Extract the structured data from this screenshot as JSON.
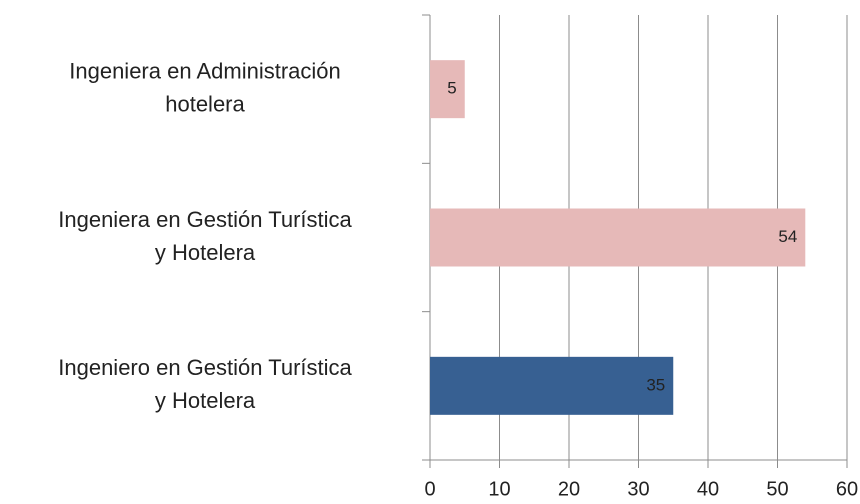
{
  "chart_data": {
    "type": "bar",
    "orientation": "horizontal",
    "categories": [
      [
        "Ingeniera en Administración",
        "hotelera"
      ],
      [
        "Ingeniera en Gestión Turística",
        "y Hotelera"
      ],
      [
        "Ingeniero en Gestión Turística",
        "y Hotelera"
      ]
    ],
    "values": [
      5,
      54,
      35
    ],
    "colors": [
      "#e6b9b8",
      "#e6b9b8",
      "#376092"
    ],
    "xlim": [
      0,
      60
    ],
    "xticks": [
      0,
      10,
      20,
      30,
      40,
      50,
      60
    ],
    "grid": true
  }
}
